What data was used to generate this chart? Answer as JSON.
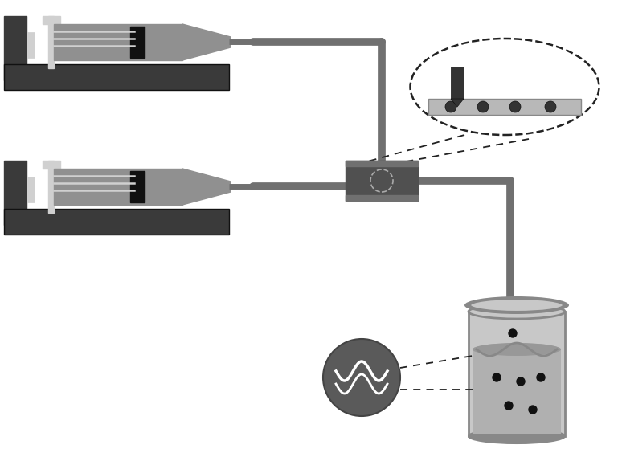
{
  "bg_color": "#ffffff",
  "frame_dark": "#3a3a3a",
  "frame_mid": "#555555",
  "syringe_gray": "#909090",
  "syringe_light": "#c8c8c8",
  "plunger_light": "#d0d0d0",
  "black": "#111111",
  "tube_gray": "#707070",
  "junction_dark": "#505050",
  "junction_mid": "#707070",
  "beaker_rim": "#888888",
  "beaker_body": "#c8c8c8",
  "beaker_fluid": "#b0b0b0",
  "beaker_fluid_dark": "#989898",
  "us_dark": "#606060",
  "us_circle": "#5a5a5a",
  "white": "#ffffff",
  "dashed": "#222222",
  "inset_plate": "#b8b8b8",
  "inset_hole": "#333333"
}
